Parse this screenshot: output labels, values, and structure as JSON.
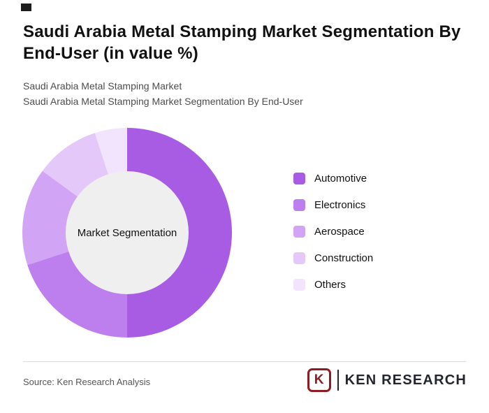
{
  "page": {
    "title_lines": [
      "Saudi Arabia Metal Stamping Market Segmentation By",
      "End-User (in value %)"
    ],
    "subtitle_lines": [
      "Saudi Arabia Metal Stamping Market",
      "Saudi Arabia Metal Stamping Market Segmentation By End-User"
    ],
    "source": "Source: Ken Research Analysis",
    "logo": {
      "emblem_letter": "K",
      "text": "KEN RESEARCH",
      "brand_color": "#8e1c22",
      "text_color": "#23262e"
    }
  },
  "chart_data": {
    "type": "pie",
    "donut": true,
    "title": "Saudi Arabia Metal Stamping Market Segmentation By End-User (in value %)",
    "center_label": "Market Segmentation",
    "categories": [
      "Automotive",
      "Electronics",
      "Aerospace",
      "Construction",
      "Others"
    ],
    "values": [
      50,
      20,
      15,
      10,
      5
    ],
    "colors": [
      "#a85ce4",
      "#bd7fee",
      "#d2a4f5",
      "#e4c8fa",
      "#f2e4fd"
    ],
    "hole_color": "#efefef",
    "legend_position": "right",
    "start_angle_deg": 0,
    "direction": "clockwise"
  }
}
